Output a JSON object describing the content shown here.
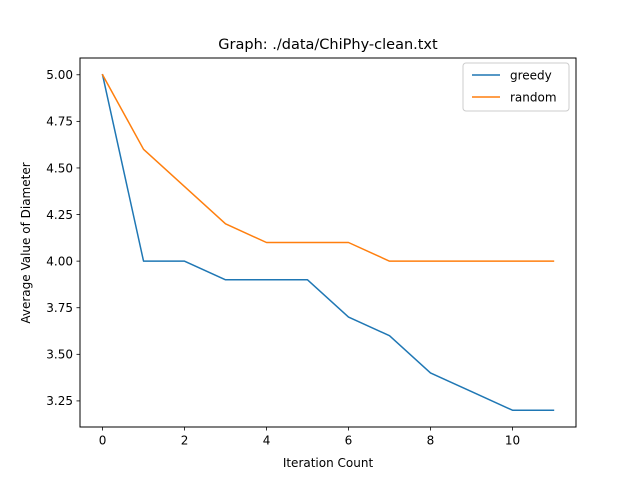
{
  "chart_data": {
    "type": "line",
    "title": "Graph: ./data/ChiPhy-clean.txt",
    "xlabel": "Iteration Count",
    "ylabel": "Average Value of Diameter",
    "xlim": [
      -0.55,
      11.55
    ],
    "ylim": [
      3.11,
      5.09
    ],
    "xticks": [
      0,
      2,
      4,
      6,
      8,
      10
    ],
    "xtick_labels": [
      "0",
      "2",
      "4",
      "6",
      "8",
      "10"
    ],
    "yticks": [
      3.25,
      3.5,
      3.75,
      4.0,
      4.25,
      4.5,
      4.75,
      5.0
    ],
    "ytick_labels": [
      "3.25",
      "3.50",
      "3.75",
      "4.00",
      "4.25",
      "4.50",
      "4.75",
      "5.00"
    ],
    "grid": false,
    "legend_position": "top-right",
    "x": [
      0,
      1,
      2,
      3,
      4,
      5,
      6,
      7,
      8,
      9,
      10,
      11
    ],
    "series": [
      {
        "name": "greedy",
        "color": "#1f77b4",
        "values": [
          5.0,
          4.0,
          4.0,
          3.9,
          3.9,
          3.9,
          3.7,
          3.6,
          3.4,
          3.3,
          3.2,
          3.2
        ]
      },
      {
        "name": "random",
        "color": "#ff7f0e",
        "values": [
          5.0,
          4.6,
          4.4,
          4.2,
          4.1,
          4.1,
          4.1,
          4.0,
          4.0,
          4.0,
          4.0,
          4.0
        ]
      }
    ]
  }
}
